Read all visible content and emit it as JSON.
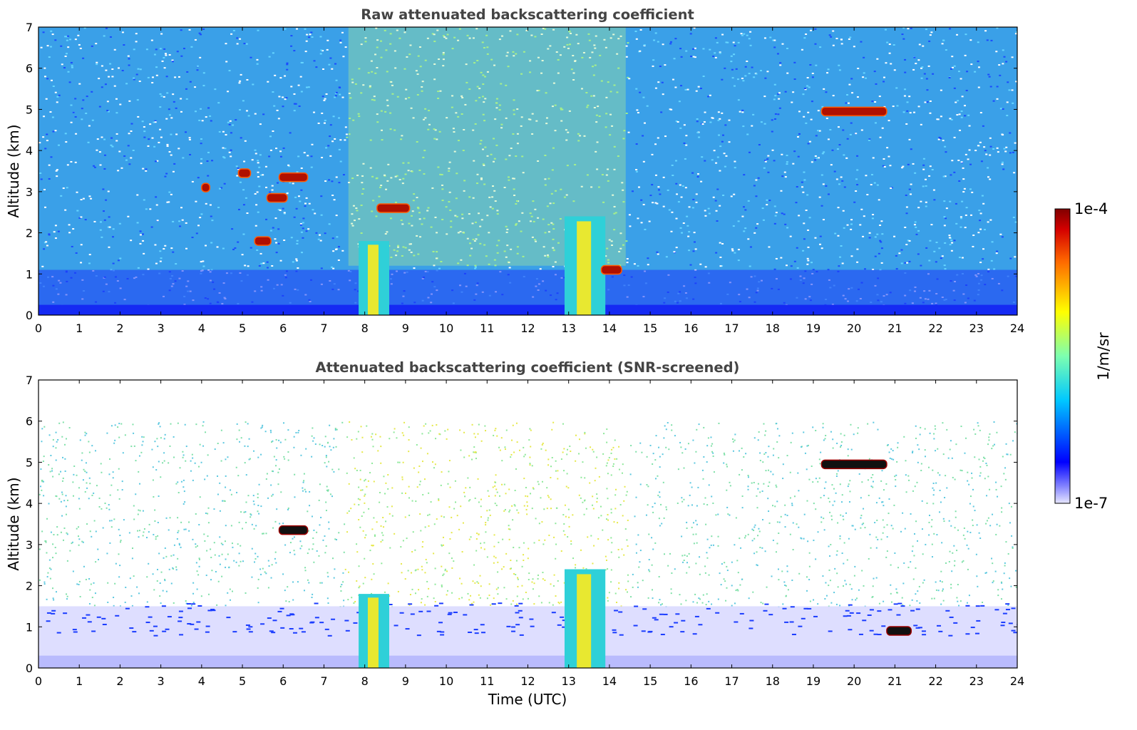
{
  "chart_data": [
    {
      "type": "heatmap",
      "title": "Raw attenuated backscattering coefficient",
      "xlabel": "",
      "ylabel": "Altitude (km)",
      "xlim": [
        0,
        24
      ],
      "ylim": [
        0,
        7
      ],
      "x_ticks": [
        "0",
        "1",
        "2",
        "3",
        "4",
        "5",
        "6",
        "7",
        "8",
        "9",
        "10",
        "11",
        "12",
        "13",
        "14",
        "15",
        "16",
        "17",
        "18",
        "19",
        "20",
        "21",
        "22",
        "23",
        "24"
      ],
      "y_ticks": [
        "0",
        "1",
        "2",
        "3",
        "4",
        "5",
        "6",
        "7"
      ],
      "screened": false,
      "features": [
        {
          "kind": "surface_layer",
          "time_start": 0,
          "time_end": 24,
          "alt_top": 0.25
        },
        {
          "kind": "boundary_layer_aerosol",
          "time_start": 0,
          "time_end": 24,
          "alt_top": 1.1
        },
        {
          "kind": "aerosol_plume",
          "time_start": 7.85,
          "time_end": 8.6,
          "alt_top": 1.8
        },
        {
          "kind": "aerosol_plume",
          "time_start": 12.9,
          "time_end": 13.9,
          "alt_top": 2.4
        },
        {
          "kind": "cloud",
          "time_start": 19.2,
          "time_end": 20.8,
          "alt": 4.95
        },
        {
          "kind": "cloud",
          "time_start": 5.9,
          "time_end": 6.6,
          "alt": 3.35
        },
        {
          "kind": "cloud",
          "time_start": 4.9,
          "time_end": 5.2,
          "alt": 3.45
        },
        {
          "kind": "cloud",
          "time_start": 5.6,
          "time_end": 6.1,
          "alt": 2.85
        },
        {
          "kind": "cloud",
          "time_start": 5.3,
          "time_end": 5.7,
          "alt": 1.8
        },
        {
          "kind": "cloud",
          "time_start": 8.3,
          "time_end": 9.1,
          "alt": 2.6
        },
        {
          "kind": "cloud",
          "time_start": 4.0,
          "time_end": 4.2,
          "alt": 3.1
        },
        {
          "kind": "cloud",
          "time_start": 13.8,
          "time_end": 14.3,
          "alt": 1.1
        }
      ]
    },
    {
      "type": "heatmap",
      "title": "Attenuated backscattering coefficient (SNR-screened)",
      "xlabel": "Time (UTC)",
      "ylabel": "Altitude (km)",
      "xlim": [
        0,
        24
      ],
      "ylim": [
        0,
        7
      ],
      "x_ticks": [
        "0",
        "1",
        "2",
        "3",
        "4",
        "5",
        "6",
        "7",
        "8",
        "9",
        "10",
        "11",
        "12",
        "13",
        "14",
        "15",
        "16",
        "17",
        "18",
        "19",
        "20",
        "21",
        "22",
        "23",
        "24"
      ],
      "y_ticks": [
        "0",
        "1",
        "2",
        "3",
        "4",
        "5",
        "6",
        "7"
      ],
      "screened": true,
      "features": [
        {
          "kind": "surface_layer",
          "time_start": 0,
          "time_end": 24,
          "alt_top": 0.3
        },
        {
          "kind": "boundary_layer_aerosol",
          "time_start": 0,
          "time_end": 24,
          "alt_top": 1.5
        },
        {
          "kind": "aerosol_plume",
          "time_start": 7.85,
          "time_end": 8.6,
          "alt_top": 1.8
        },
        {
          "kind": "aerosol_plume",
          "time_start": 12.9,
          "time_end": 13.9,
          "alt_top": 2.4
        },
        {
          "kind": "cloud",
          "time_start": 19.2,
          "time_end": 20.8,
          "alt": 4.95
        },
        {
          "kind": "cloud",
          "time_start": 5.9,
          "time_end": 6.6,
          "alt": 3.35
        },
        {
          "kind": "cloud",
          "time_start": 20.8,
          "time_end": 21.4,
          "alt": 0.9
        }
      ]
    }
  ],
  "colorbar": {
    "label": "1/m/sr",
    "max_label": "1e-4",
    "min_label": "1e-7",
    "scale": "log",
    "colormap": [
      "#e6e6ff",
      "#0000ff",
      "#00c8ff",
      "#7dffb0",
      "#ffff00",
      "#ff7700",
      "#d40000",
      "#800000"
    ]
  }
}
